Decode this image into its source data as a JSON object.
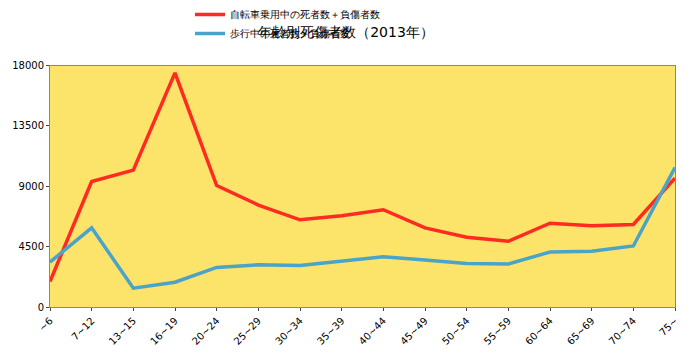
{
  "chart_data": {
    "type": "line",
    "title": "年齢別死傷者数（2013年）",
    "categories": [
      "~6",
      "7~12",
      "13~15",
      "16~19",
      "20~24",
      "25~29",
      "30~34",
      "35~39",
      "40~44",
      "45~49",
      "50~54",
      "55~59",
      "60~64",
      "65~69",
      "70~74",
      "75~"
    ],
    "series": [
      {
        "name": "自転車乗用中の死者数＋負傷者数",
        "color": "#ff2a22",
        "values": [
          1900,
          9350,
          10200,
          17450,
          9050,
          7600,
          6500,
          6800,
          7250,
          5900,
          5200,
          4900,
          6250,
          6050,
          6150,
          9600
        ]
      },
      {
        "name": "歩行中の死者数＋負傷者数",
        "color": "#4aa3c8",
        "values": [
          3350,
          5900,
          1400,
          1850,
          2950,
          3150,
          3100,
          3400,
          3750,
          3500,
          3250,
          3200,
          4100,
          4150,
          4550,
          10400
        ]
      }
    ],
    "ylim": [
      0,
      18000
    ],
    "yticks": [
      0,
      4500,
      9000,
      13500,
      18000
    ],
    "grid": false,
    "legend": "top"
  }
}
